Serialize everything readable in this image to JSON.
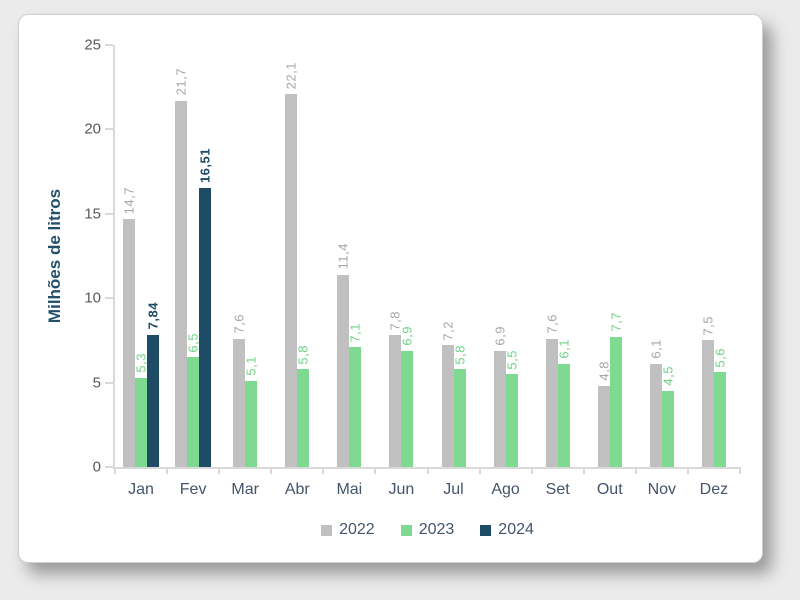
{
  "chart_data": {
    "type": "bar",
    "title": "",
    "xlabel": "",
    "ylabel": "Milhões de litros",
    "ylim": [
      0,
      25
    ],
    "yticks": [
      0,
      5,
      10,
      15,
      20,
      25
    ],
    "grid": false,
    "legend_position": "bottom",
    "categories": [
      "Jan",
      "Fev",
      "Mar",
      "Abr",
      "Mai",
      "Jun",
      "Jul",
      "Ago",
      "Set",
      "Out",
      "Nov",
      "Dez"
    ],
    "series": [
      {
        "name": "2022",
        "color": "#c0c0c0",
        "label_color": "#a6a6a6",
        "bold_labels": false,
        "values": [
          14.7,
          21.7,
          7.6,
          22.1,
          11.4,
          7.8,
          7.2,
          6.9,
          7.6,
          4.8,
          6.1,
          7.5
        ],
        "labels": [
          "14,7",
          "21,7",
          "7,6",
          "22,1",
          "11,4",
          "7,8",
          "7,2",
          "6,9",
          "7,6",
          "4,8",
          "6,1",
          "7,5"
        ]
      },
      {
        "name": "2023",
        "color": "#7dda90",
        "label_color": "#6fd286",
        "bold_labels": false,
        "values": [
          5.3,
          6.5,
          5.1,
          5.8,
          7.1,
          6.9,
          5.8,
          5.5,
          6.1,
          7.7,
          4.5,
          5.6
        ],
        "labels": [
          "5,3",
          "6,5",
          "5,1",
          "5,8",
          "7,1",
          "6,9",
          "5,8",
          "5,5",
          "6,1",
          "7,7",
          "4,5",
          "5,6"
        ]
      },
      {
        "name": "2024",
        "color": "#1e4c66",
        "label_color": "#1e4c66",
        "bold_labels": true,
        "values": [
          7.84,
          16.51,
          null,
          null,
          null,
          null,
          null,
          null,
          null,
          null,
          null,
          null
        ],
        "labels": [
          "7,84",
          "16,51",
          "",
          "",
          "",
          "",
          "",
          "",
          "",
          "",
          "",
          ""
        ]
      }
    ],
    "colors": {
      "axis_line": "#d9d9d9",
      "axis_tick_text": "#595959",
      "category_text": "#44546a",
      "axis_title_text": "#24506b",
      "panel_background": "#ffffff",
      "page_background": "#ebebeb"
    }
  }
}
